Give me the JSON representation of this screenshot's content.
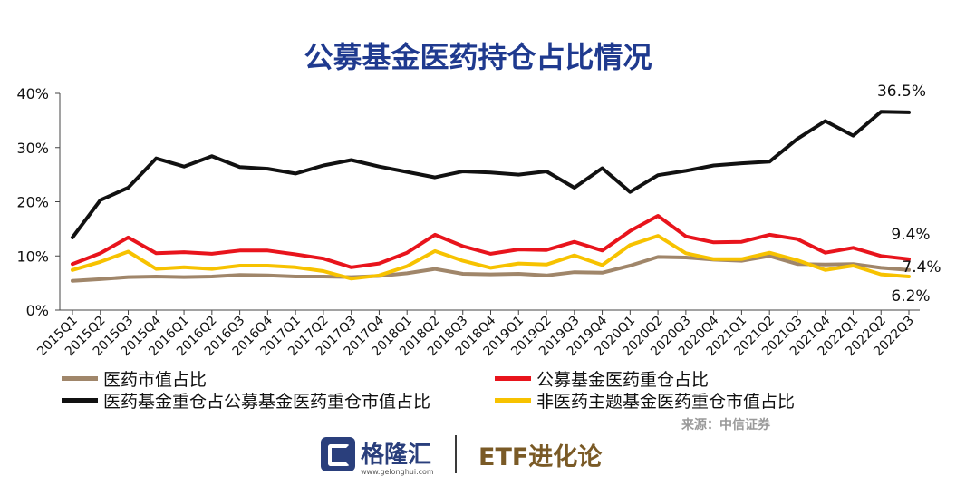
{
  "page_title": "公募基金医药持仓占比情况",
  "source": "来源：中信证券",
  "footer": {
    "brand_name": "格隆汇",
    "brand_url": "www.gelonghui.com",
    "logo_letter": "G",
    "channel_name": "ETF进化论"
  },
  "chart_data": {
    "type": "line",
    "title": "公募基金医药持仓占比情况",
    "categories": [
      "2015Q1",
      "2015Q2",
      "2015Q3",
      "2015Q4",
      "2016Q1",
      "2016Q2",
      "2016Q3",
      "2016Q4",
      "2017Q1",
      "2017Q2",
      "2017Q3",
      "2017Q4",
      "2018Q1",
      "2018Q2",
      "2018Q3",
      "2018Q4",
      "2019Q1",
      "2019Q2",
      "2019Q3",
      "2019Q4",
      "2020Q1",
      "2020Q2",
      "2020Q3",
      "2020Q4",
      "2021Q1",
      "2021Q2",
      "2021Q3",
      "2021Q4",
      "2022Q1",
      "2022Q2",
      "2022Q3"
    ],
    "ylim": [
      0,
      40
    ],
    "yticks": [
      "0%",
      "10%",
      "20%",
      "30%",
      "40%"
    ],
    "grid": false,
    "legend_position": "bottom",
    "series": [
      {
        "name": "医药市值占比",
        "color": "#a0866a",
        "values": [
          5.4,
          5.7,
          6.1,
          6.2,
          6.1,
          6.2,
          6.5,
          6.4,
          6.2,
          6.2,
          6.1,
          6.3,
          6.8,
          7.6,
          6.7,
          6.6,
          6.7,
          6.4,
          7.0,
          6.9,
          8.2,
          9.8,
          9.7,
          9.3,
          9.1,
          10.0,
          8.5,
          8.4,
          8.5,
          7.8,
          7.4
        ],
        "end_label": "7.4%"
      },
      {
        "name": "公募基金医药重仓占比",
        "color": "#e8141c",
        "values": [
          8.5,
          10.5,
          13.4,
          10.5,
          10.7,
          10.4,
          11.0,
          11.0,
          10.3,
          9.5,
          7.9,
          8.6,
          10.6,
          13.9,
          11.8,
          10.4,
          11.2,
          11.1,
          12.6,
          11.0,
          14.6,
          17.4,
          13.6,
          12.5,
          12.6,
          13.9,
          13.1,
          10.6,
          11.5,
          10.0,
          9.4
        ],
        "end_label": "9.4%"
      },
      {
        "name": "医药基金重仓占公募基金医药重仓市值占比",
        "color": "#111111",
        "values": [
          13.4,
          20.3,
          22.6,
          28.0,
          26.5,
          28.4,
          26.4,
          26.1,
          25.2,
          26.7,
          27.7,
          26.5,
          25.5,
          24.5,
          25.6,
          25.4,
          25.0,
          25.6,
          22.6,
          26.2,
          21.8,
          24.9,
          25.7,
          26.7,
          27.1,
          27.4,
          31.6,
          34.9,
          32.2,
          36.6,
          36.5
        ],
        "end_label": "36.5%"
      },
      {
        "name": "非医药主题基金医药重仓市值占比",
        "color": "#f7c200",
        "values": [
          7.4,
          8.9,
          10.8,
          7.6,
          7.9,
          7.6,
          8.2,
          8.2,
          7.9,
          7.2,
          5.8,
          6.4,
          8.1,
          10.9,
          9.1,
          7.8,
          8.6,
          8.4,
          10.1,
          8.3,
          12.0,
          13.7,
          10.5,
          9.4,
          9.4,
          10.6,
          9.2,
          7.4,
          8.2,
          6.6,
          6.2
        ],
        "end_label": "6.2%"
      }
    ]
  }
}
